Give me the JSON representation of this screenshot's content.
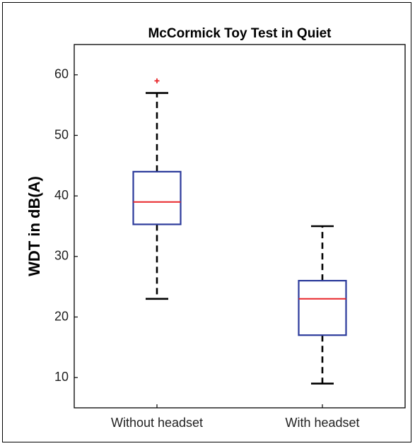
{
  "chart_data": {
    "type": "box",
    "title": "McCormick Toy Test in Quiet",
    "xlabel": "",
    "ylabel": "WDT in dB(A)",
    "ylim": [
      5,
      65
    ],
    "yticks": [
      10,
      20,
      30,
      40,
      50,
      60
    ],
    "categories": [
      "Without headset",
      "With headset"
    ],
    "boxes": [
      {
        "category": "Without headset",
        "whisker_low": 23,
        "q1": 35.3,
        "median": 39,
        "q3": 44,
        "whisker_high": 57,
        "outliers": [
          59
        ]
      },
      {
        "category": "With headset",
        "whisker_low": 9,
        "q1": 17,
        "median": 23,
        "q3": 26,
        "whisker_high": 35,
        "outliers": []
      }
    ],
    "colors": {
      "box": "#2b3a9b",
      "median": "#e8262a",
      "whisker": "#000000",
      "outlier": "#e8262a"
    },
    "grid": false,
    "legend": "none"
  }
}
